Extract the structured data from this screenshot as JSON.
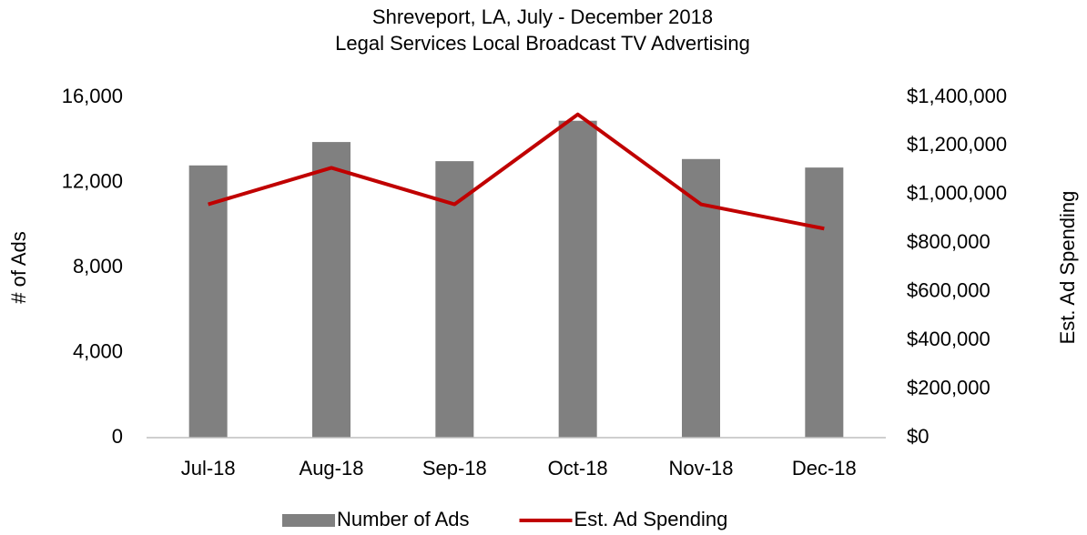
{
  "chart_data": {
    "type": "bar_line",
    "title": "Shreveport, LA, July - December 2018",
    "subtitle": "Legal Services Local Broadcast TV Advertising",
    "y_label": "# of Ads",
    "y2_label": "Est. Ad Spending",
    "categories": [
      "Jul-18",
      "Aug-18",
      "Sep-18",
      "Oct-18",
      "Nov-18",
      "Dec-18"
    ],
    "series": [
      {
        "name": "Number of Ads",
        "type": "bar",
        "color": "#808080",
        "values": [
          12800,
          13900,
          13000,
          14900,
          13100,
          12700
        ]
      },
      {
        "name": "Est. Ad Spending",
        "type": "line",
        "color": "#c00000",
        "axis": "y2",
        "values": [
          960000,
          1110000,
          960000,
          1330000,
          960000,
          860000
        ]
      }
    ],
    "ylim": [
      0,
      16000
    ],
    "yticks": [
      0,
      {
        "value": 4000,
        "label": "4,000"
      },
      {
        "value": 8000,
        "label": "8,000"
      },
      {
        "value": 12000,
        "label": "12,000"
      },
      {
        "value": 16000,
        "label": "16,000"
      }
    ],
    "y2lim": [
      0,
      1400000
    ],
    "y2ticks": [
      {
        "value": 0,
        "label": "$0"
      },
      {
        "value": 200000,
        "label": "$200,000"
      },
      {
        "value": 400000,
        "label": "$400,000"
      },
      {
        "value": 600000,
        "label": "$600,000"
      },
      {
        "value": 800000,
        "label": "$800,000"
      },
      {
        "value": 1000000,
        "label": "$1,000,000"
      },
      {
        "value": 1200000,
        "label": "$1,200,000"
      },
      {
        "value": 1400000,
        "label": "$1,400,000"
      }
    ],
    "legend": "bottom"
  }
}
